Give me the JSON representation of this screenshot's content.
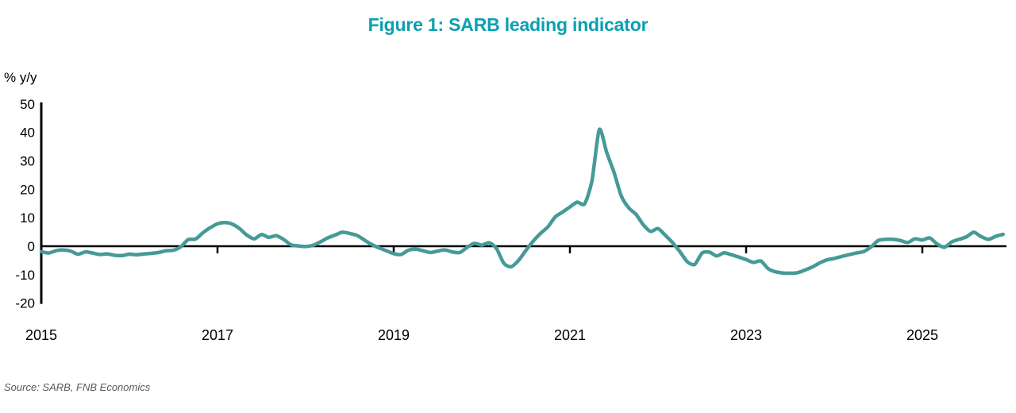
{
  "title": "Figure 1: SARB leading indicator",
  "source": "Source: SARB, FNB Economics",
  "colors": {
    "title": "#0b9fb0",
    "line": "#469a96",
    "axis": "#000000",
    "source_text": "#595959"
  },
  "chart_data": {
    "type": "line",
    "title": "Figure 1: SARB leading indicator",
    "ylabel": "% y/y",
    "xlabel": "",
    "legend": [],
    "grid": false,
    "ylim": [
      -20,
      50
    ],
    "yticks": [
      50,
      40,
      30,
      20,
      10,
      0,
      -10,
      -20
    ],
    "xtick_labels": [
      2015,
      2017,
      2019,
      2021,
      2023,
      2025
    ],
    "xtick_marks": [
      2017,
      2019,
      2021,
      2023,
      2025
    ],
    "x_start_year": 2015,
    "frequency": "monthly",
    "series": [
      {
        "name": "SARB leading indicator, % y/y",
        "values": [
          -1.9,
          -2.4,
          -1.6,
          -1.3,
          -1.7,
          -2.8,
          -2.0,
          -2.4,
          -2.9,
          -2.7,
          -3.2,
          -3.3,
          -2.8,
          -3.0,
          -2.7,
          -2.5,
          -2.2,
          -1.6,
          -1.4,
          -0.2,
          2.3,
          2.5,
          4.7,
          6.5,
          7.9,
          8.3,
          7.8,
          6.2,
          3.9,
          2.6,
          4.1,
          3.1,
          3.7,
          2.4,
          0.5,
          0.1,
          -0.1,
          0.3,
          1.5,
          2.9,
          3.9,
          4.9,
          4.5,
          3.8,
          2.2,
          0.6,
          -0.6,
          -1.6,
          -2.6,
          -2.9,
          -1.4,
          -1.0,
          -1.6,
          -2.2,
          -1.7,
          -1.3,
          -2.0,
          -2.2,
          -0.4,
          1.0,
          0.4,
          1.2,
          -0.8,
          -6.0,
          -7.2,
          -5.0,
          -1.5,
          1.8,
          4.5,
          6.8,
          10.3,
          12.0,
          13.8,
          15.5,
          14.9,
          23.0,
          41.0,
          33.0,
          26.0,
          17.6,
          13.5,
          11.2,
          7.5,
          5.2,
          6.2,
          3.8,
          1.2,
          -2.0,
          -5.5,
          -6.4,
          -2.4,
          -2.1,
          -3.4,
          -2.3,
          -3.0,
          -3.8,
          -4.7,
          -5.7,
          -5.2,
          -7.9,
          -9.0,
          -9.4,
          -9.5,
          -9.3,
          -8.4,
          -7.3,
          -5.9,
          -4.8,
          -4.3,
          -3.6,
          -3.0,
          -2.4,
          -1.9,
          -0.3,
          2.0,
          2.4,
          2.4,
          2.0,
          1.3,
          2.6,
          2.2,
          2.9,
          0.8,
          -0.4,
          1.5,
          2.4,
          3.3,
          4.9,
          3.4,
          2.4,
          3.5,
          4.2
        ]
      }
    ]
  }
}
